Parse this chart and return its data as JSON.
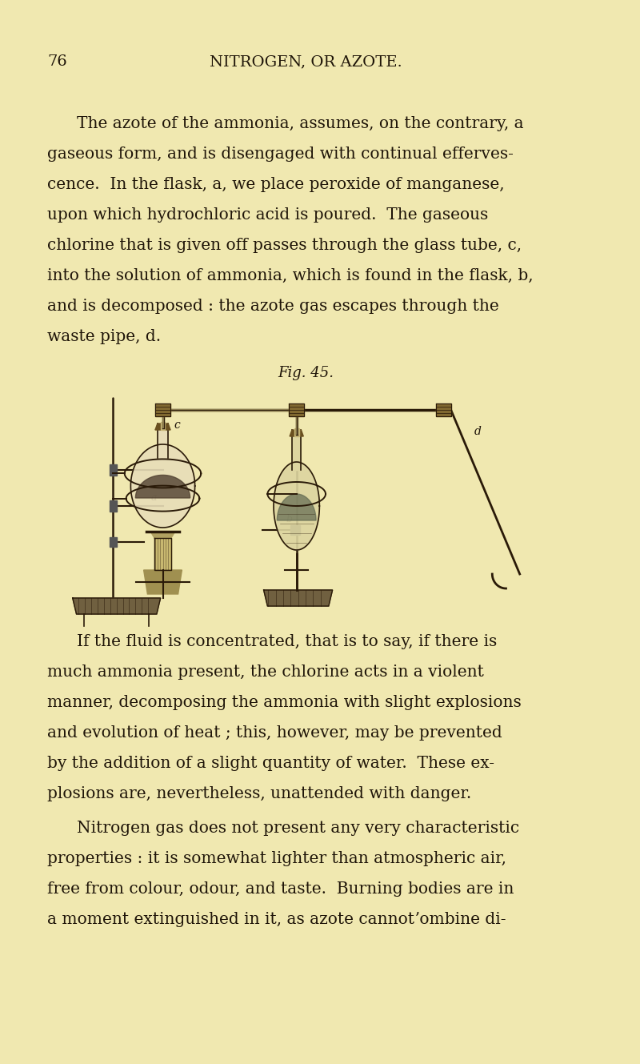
{
  "background_color": "#f0e8b0",
  "page_number": "76",
  "header": "NITROGEN, OR AZOTE.",
  "text_color": "#1e1408",
  "body_fontsize": 14.5,
  "header_fontsize": 14,
  "fig_caption": "Fig. 45.",
  "para1_lines": [
    "The azote of the ammonia, assumes, on the contrary, a",
    "gaseous form, and is disengaged with continual efferves-",
    "cence.  In the flask, a, we place peroxide of manganese,",
    "upon which hydrochloric acid is poured.  The gaseous",
    "chlorine that is given off passes through the glass tube, c,",
    "into the solution of ammonia, which is found in the flask, b,",
    "and is decomposed : the azote gas escapes through the",
    "waste pipe, d."
  ],
  "para2_lines": [
    "If the fluid is concentrated, that is to say, if there is",
    "much ammonia present, the chlorine acts in a violent",
    "manner, decomposing the ammonia with slight explosions",
    "and evolution of heat ; this, however, may be prevented",
    "by the addition of a slight quantity of water.  These ex-",
    "plosions are, nevertheless, unattended with danger."
  ],
  "para3_lines": [
    "Nitrogen gas does not present any very characteristic",
    "properties : it is somewhat lighter than atmospheric air,",
    "free from colour, odour, and taste.  Burning bodies are in",
    "a moment extinguished in it, as azote cannotʼombine di-"
  ]
}
